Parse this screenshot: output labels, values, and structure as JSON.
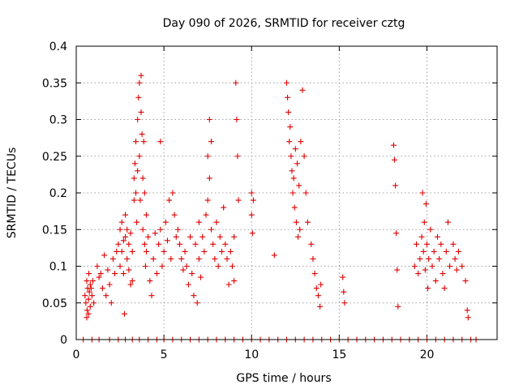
{
  "chart_data": {
    "type": "scatter",
    "title": "Day 090 of 2026, SRMTID for receiver cztg",
    "xlabel": "GPS time / hours",
    "ylabel": "SRMTID / TECUs",
    "xlim": [
      0,
      24
    ],
    "ylim": [
      0,
      0.4
    ],
    "grid": true,
    "legend": "none",
    "marker": "plus",
    "color": "#e00000",
    "xticks": [
      0,
      5,
      10,
      15,
      20
    ],
    "xtick_labels": [
      "0",
      "5",
      "10",
      "15",
      "20"
    ],
    "yticks": [
      0,
      0.05,
      0.1,
      0.15,
      0.2,
      0.25,
      0.3,
      0.35,
      0.4
    ],
    "ytick_labels": [
      "0",
      "0.05",
      "0.1",
      "0.15",
      "0.2",
      "0.25",
      "0.3",
      "0.35",
      "0.4"
    ],
    "series": [
      {
        "name": "SRMTID",
        "points": [
          [
            0.5,
            0.06
          ],
          [
            0.55,
            0.05
          ],
          [
            0.6,
            0.08
          ],
          [
            0.62,
            0.04
          ],
          [
            0.65,
            0.07
          ],
          [
            0.7,
            0.055
          ],
          [
            0.72,
            0.09
          ],
          [
            0.75,
            0.065
          ],
          [
            0.8,
            0.045
          ],
          [
            0.85,
            0.07
          ],
          [
            0.9,
            0.06
          ],
          [
            0.95,
            0.08
          ],
          [
            1.0,
            0.05
          ],
          [
            0.6,
            0.03
          ],
          [
            0.7,
            0.035
          ],
          [
            0.8,
            0.075
          ],
          [
            1.2,
            0.1
          ],
          [
            1.3,
            0.085
          ],
          [
            1.4,
            0.09
          ],
          [
            1.5,
            0.07
          ],
          [
            1.6,
            0.115
          ],
          [
            1.7,
            0.06
          ],
          [
            1.8,
            0.095
          ],
          [
            1.9,
            0.075
          ],
          [
            2.0,
            0.05
          ],
          [
            2.1,
            0.11
          ],
          [
            2.2,
            0.09
          ],
          [
            2.3,
            0.12
          ],
          [
            2.4,
            0.13
          ],
          [
            2.5,
            0.15
          ],
          [
            2.5,
            0.1
          ],
          [
            2.6,
            0.16
          ],
          [
            2.6,
            0.12
          ],
          [
            2.7,
            0.135
          ],
          [
            2.7,
            0.09
          ],
          [
            2.8,
            0.14
          ],
          [
            2.8,
            0.17
          ],
          [
            2.9,
            0.11
          ],
          [
            2.9,
            0.15
          ],
          [
            3.0,
            0.13
          ],
          [
            3.0,
            0.095
          ],
          [
            3.1,
            0.145
          ],
          [
            3.1,
            0.075
          ],
          [
            3.2,
            0.12
          ],
          [
            3.2,
            0.08
          ],
          [
            2.75,
            0.035
          ],
          [
            3.3,
            0.19
          ],
          [
            3.3,
            0.22
          ],
          [
            3.35,
            0.24
          ],
          [
            3.4,
            0.2
          ],
          [
            3.4,
            0.27
          ],
          [
            3.45,
            0.16
          ],
          [
            3.5,
            0.3
          ],
          [
            3.5,
            0.23
          ],
          [
            3.55,
            0.33
          ],
          [
            3.6,
            0.35
          ],
          [
            3.6,
            0.25
          ],
          [
            3.65,
            0.19
          ],
          [
            3.7,
            0.31
          ],
          [
            3.7,
            0.36
          ],
          [
            3.75,
            0.28
          ],
          [
            3.8,
            0.22
          ],
          [
            3.8,
            0.15
          ],
          [
            3.85,
            0.27
          ],
          [
            3.9,
            0.2
          ],
          [
            3.9,
            0.13
          ],
          [
            3.95,
            0.1
          ],
          [
            4.0,
            0.17
          ],
          [
            4.0,
            0.12
          ],
          [
            4.1,
            0.14
          ],
          [
            4.2,
            0.08
          ],
          [
            4.3,
            0.06
          ],
          [
            4.4,
            0.11
          ],
          [
            4.5,
            0.145
          ],
          [
            4.6,
            0.09
          ],
          [
            4.7,
            0.13
          ],
          [
            4.8,
            0.27
          ],
          [
            4.8,
            0.15
          ],
          [
            4.9,
            0.1
          ],
          [
            5.0,
            0.12
          ],
          [
            5.1,
            0.16
          ],
          [
            5.2,
            0.135
          ],
          [
            5.3,
            0.19
          ],
          [
            5.4,
            0.11
          ],
          [
            5.5,
            0.2
          ],
          [
            5.6,
            0.17
          ],
          [
            5.7,
            0.14
          ],
          [
            5.8,
            0.15
          ],
          [
            5.9,
            0.13
          ],
          [
            6.0,
            0.11
          ],
          [
            6.1,
            0.095
          ],
          [
            6.2,
            0.12
          ],
          [
            6.3,
            0.1
          ],
          [
            6.4,
            0.075
          ],
          [
            6.5,
            0.14
          ],
          [
            6.6,
            0.09
          ],
          [
            6.7,
            0.06
          ],
          [
            6.8,
            0.13
          ],
          [
            6.9,
            0.05
          ],
          [
            7.0,
            0.11
          ],
          [
            7.0,
            0.16
          ],
          [
            7.1,
            0.085
          ],
          [
            7.2,
            0.14
          ],
          [
            7.3,
            0.12
          ],
          [
            7.4,
            0.17
          ],
          [
            7.5,
            0.19
          ],
          [
            7.5,
            0.25
          ],
          [
            7.6,
            0.3
          ],
          [
            7.6,
            0.22
          ],
          [
            7.7,
            0.27
          ],
          [
            7.7,
            0.15
          ],
          [
            7.8,
            0.13
          ],
          [
            7.9,
            0.11
          ],
          [
            8.0,
            0.16
          ],
          [
            8.1,
            0.1
          ],
          [
            8.2,
            0.14
          ],
          [
            8.3,
            0.12
          ],
          [
            8.4,
            0.18
          ],
          [
            8.5,
            0.13
          ],
          [
            8.6,
            0.11
          ],
          [
            8.7,
            0.075
          ],
          [
            8.8,
            0.12
          ],
          [
            8.9,
            0.1
          ],
          [
            9.0,
            0.08
          ],
          [
            9.0,
            0.14
          ],
          [
            9.1,
            0.35
          ],
          [
            9.15,
            0.3
          ],
          [
            9.2,
            0.25
          ],
          [
            9.25,
            0.19
          ],
          [
            10.0,
            0.2
          ],
          [
            10.0,
            0.17
          ],
          [
            10.05,
            0.145
          ],
          [
            10.1,
            0.19
          ],
          [
            11.3,
            0.115
          ],
          [
            12.0,
            0.35
          ],
          [
            12.05,
            0.33
          ],
          [
            12.1,
            0.31
          ],
          [
            12.15,
            0.27
          ],
          [
            12.2,
            0.29
          ],
          [
            12.25,
            0.25
          ],
          [
            12.3,
            0.23
          ],
          [
            12.35,
            0.2
          ],
          [
            12.4,
            0.22
          ],
          [
            12.45,
            0.18
          ],
          [
            12.5,
            0.26
          ],
          [
            12.55,
            0.16
          ],
          [
            12.6,
            0.24
          ],
          [
            12.65,
            0.14
          ],
          [
            12.7,
            0.21
          ],
          [
            12.75,
            0.15
          ],
          [
            12.8,
            0.27
          ],
          [
            12.9,
            0.34
          ],
          [
            13.0,
            0.25
          ],
          [
            13.1,
            0.2
          ],
          [
            13.2,
            0.16
          ],
          [
            13.4,
            0.13
          ],
          [
            13.5,
            0.11
          ],
          [
            13.6,
            0.09
          ],
          [
            13.7,
            0.07
          ],
          [
            13.8,
            0.06
          ],
          [
            13.9,
            0.045
          ],
          [
            13.95,
            0.075
          ],
          [
            15.2,
            0.085
          ],
          [
            15.25,
            0.065
          ],
          [
            15.3,
            0.05
          ],
          [
            18.1,
            0.265
          ],
          [
            18.15,
            0.245
          ],
          [
            18.2,
            0.21
          ],
          [
            18.25,
            0.145
          ],
          [
            18.3,
            0.095
          ],
          [
            18.35,
            0.045
          ],
          [
            19.3,
            0.1
          ],
          [
            19.4,
            0.13
          ],
          [
            19.5,
            0.09
          ],
          [
            19.6,
            0.11
          ],
          [
            19.7,
            0.14
          ],
          [
            19.75,
            0.2
          ],
          [
            19.8,
            0.12
          ],
          [
            19.85,
            0.16
          ],
          [
            19.9,
            0.095
          ],
          [
            19.95,
            0.185
          ],
          [
            20.0,
            0.13
          ],
          [
            20.05,
            0.07
          ],
          [
            20.1,
            0.11
          ],
          [
            20.2,
            0.15
          ],
          [
            20.3,
            0.1
          ],
          [
            20.4,
            0.12
          ],
          [
            20.5,
            0.08
          ],
          [
            20.6,
            0.14
          ],
          [
            20.7,
            0.11
          ],
          [
            20.8,
            0.13
          ],
          [
            20.9,
            0.09
          ],
          [
            21.0,
            0.07
          ],
          [
            21.1,
            0.12
          ],
          [
            21.2,
            0.16
          ],
          [
            21.3,
            0.1
          ],
          [
            21.5,
            0.13
          ],
          [
            21.6,
            0.11
          ],
          [
            21.7,
            0.095
          ],
          [
            21.8,
            0.12
          ],
          [
            22.0,
            0.1
          ],
          [
            22.2,
            0.08
          ],
          [
            22.3,
            0.04
          ],
          [
            22.35,
            0.03
          ],
          [
            0.4,
            0
          ],
          [
            0.9,
            0
          ],
          [
            1.3,
            0
          ],
          [
            1.9,
            0
          ],
          [
            2.4,
            0
          ],
          [
            2.8,
            0
          ],
          [
            3.2,
            0
          ],
          [
            3.6,
            0
          ],
          [
            4.1,
            0
          ],
          [
            4.6,
            0
          ],
          [
            5.0,
            0
          ],
          [
            5.5,
            0
          ],
          [
            6.0,
            0
          ],
          [
            6.5,
            0
          ],
          [
            7.0,
            0
          ],
          [
            7.5,
            0
          ],
          [
            8.0,
            0
          ],
          [
            8.5,
            0
          ],
          [
            9.0,
            0
          ],
          [
            9.5,
            0
          ],
          [
            10.0,
            0
          ],
          [
            10.5,
            0
          ],
          [
            11.0,
            0
          ],
          [
            11.5,
            0
          ],
          [
            12.0,
            0
          ],
          [
            12.5,
            0
          ],
          [
            13.0,
            0
          ],
          [
            13.5,
            0
          ],
          [
            14.0,
            0
          ],
          [
            14.5,
            0
          ],
          [
            15.0,
            0
          ],
          [
            15.5,
            0
          ],
          [
            16.0,
            0
          ],
          [
            16.5,
            0
          ],
          [
            17.0,
            0
          ],
          [
            17.5,
            0
          ],
          [
            18.0,
            0
          ],
          [
            18.5,
            0
          ],
          [
            19.0,
            0
          ],
          [
            19.5,
            0
          ],
          [
            20.0,
            0
          ],
          [
            20.5,
            0
          ],
          [
            21.0,
            0
          ],
          [
            21.5,
            0
          ],
          [
            22.0,
            0
          ],
          [
            22.5,
            0
          ],
          [
            22.8,
            0
          ]
        ]
      }
    ]
  }
}
